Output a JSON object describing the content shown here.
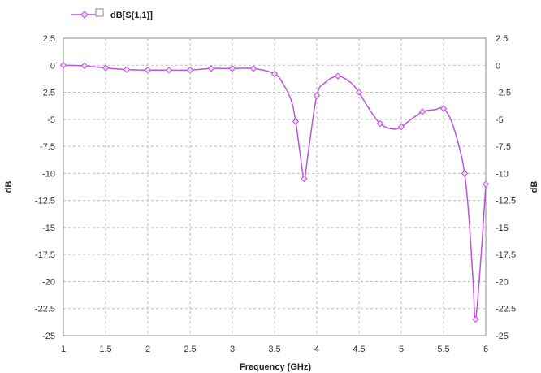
{
  "chart_data": {
    "type": "line",
    "legend": {
      "entries": [
        "dB[S(1,1)]"
      ],
      "placement": "top-left"
    },
    "xlabel": "Frequency (GHz)",
    "ylabel": "dB",
    "ylabel_right": "dB",
    "xlim": [
      1,
      6
    ],
    "ylim": [
      -25,
      2.5
    ],
    "xticks": [
      "1",
      "1.5",
      "2",
      "2.5",
      "3",
      "3.5",
      "4",
      "4.5",
      "5",
      "5.5",
      "6"
    ],
    "yticks": [
      "2.5",
      "0",
      "-2.5",
      "-5",
      "-7.5",
      "-10",
      "-12.5",
      "-15",
      "-17.5",
      "-20",
      "-22.5",
      "-25"
    ],
    "grid": true,
    "series": [
      {
        "name": "dB[S(1,1)]",
        "color": "#bb55dd",
        "x": [
          1.0,
          1.25,
          1.5,
          1.75,
          2.0,
          2.25,
          2.5,
          2.75,
          3.0,
          3.25,
          3.5,
          3.6,
          3.7,
          3.75,
          3.8,
          3.85,
          3.9,
          4.0,
          4.1,
          4.25,
          4.4,
          4.5,
          4.6,
          4.75,
          4.9,
          5.0,
          5.1,
          5.25,
          5.4,
          5.5,
          5.6,
          5.7,
          5.75,
          5.8,
          5.85,
          5.88,
          5.95,
          6.0
        ],
        "y": [
          0.0,
          -0.05,
          -0.25,
          -0.4,
          -0.45,
          -0.45,
          -0.45,
          -0.3,
          -0.3,
          -0.3,
          -0.8,
          -1.7,
          -3.3,
          -5.2,
          -8.0,
          -10.5,
          -8.0,
          -2.8,
          -1.6,
          -1.0,
          -1.6,
          -2.5,
          -3.8,
          -5.4,
          -5.9,
          -5.7,
          -5.1,
          -4.3,
          -4.1,
          -4.0,
          -5.3,
          -8.0,
          -10.0,
          -14.0,
          -20.0,
          -23.5,
          -17.0,
          -11.0
        ],
        "markers_x": [
          1.0,
          1.25,
          1.5,
          1.75,
          2.0,
          2.25,
          2.5,
          2.75,
          3.0,
          3.25,
          3.5,
          3.75,
          3.85,
          4.0,
          4.25,
          4.5,
          4.75,
          5.0,
          5.25,
          5.5,
          5.75,
          5.88,
          6.0
        ],
        "markers_y": [
          0.0,
          -0.05,
          -0.25,
          -0.4,
          -0.45,
          -0.45,
          -0.45,
          -0.3,
          -0.3,
          -0.3,
          -0.8,
          -5.2,
          -10.5,
          -2.8,
          -1.0,
          -2.5,
          -5.4,
          -5.7,
          -4.3,
          -4.0,
          -10.0,
          -23.5,
          -11.0
        ]
      }
    ]
  }
}
